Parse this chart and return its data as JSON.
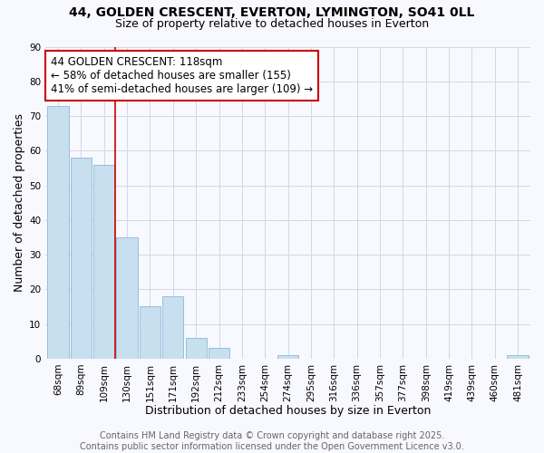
{
  "title": "44, GOLDEN CRESCENT, EVERTON, LYMINGTON, SO41 0LL",
  "subtitle": "Size of property relative to detached houses in Everton",
  "xlabel": "Distribution of detached houses by size in Everton",
  "ylabel": "Number of detached properties",
  "bar_labels": [
    "68sqm",
    "89sqm",
    "109sqm",
    "130sqm",
    "151sqm",
    "171sqm",
    "192sqm",
    "212sqm",
    "233sqm",
    "254sqm",
    "274sqm",
    "295sqm",
    "316sqm",
    "336sqm",
    "357sqm",
    "377sqm",
    "398sqm",
    "419sqm",
    "439sqm",
    "460sqm",
    "481sqm"
  ],
  "bar_values": [
    73,
    58,
    56,
    35,
    15,
    18,
    6,
    3,
    0,
    0,
    1,
    0,
    0,
    0,
    0,
    0,
    0,
    0,
    0,
    0,
    1
  ],
  "bar_color": "#c8dff0",
  "bar_edge_color": "#8ab8d8",
  "property_line_color": "#cc0000",
  "annotation_title": "44 GOLDEN CRESCENT: 118sqm",
  "annotation_line1": "← 58% of detached houses are smaller (155)",
  "annotation_line2": "41% of semi-detached houses are larger (109) →",
  "annotation_box_facecolor": "#ffffff",
  "annotation_box_edgecolor": "#cc0000",
  "ylim": [
    0,
    90
  ],
  "yticks": [
    0,
    10,
    20,
    30,
    40,
    50,
    60,
    70,
    80,
    90
  ],
  "footer1": "Contains HM Land Registry data © Crown copyright and database right 2025.",
  "footer2": "Contains public sector information licensed under the Open Government Licence v3.0.",
  "background_color": "#f8f8ff",
  "grid_color": "#d0d8e8",
  "title_fontsize": 10,
  "subtitle_fontsize": 9,
  "axis_label_fontsize": 9,
  "tick_fontsize": 7.5,
  "annotation_fontsize": 8.5,
  "footer_fontsize": 7
}
